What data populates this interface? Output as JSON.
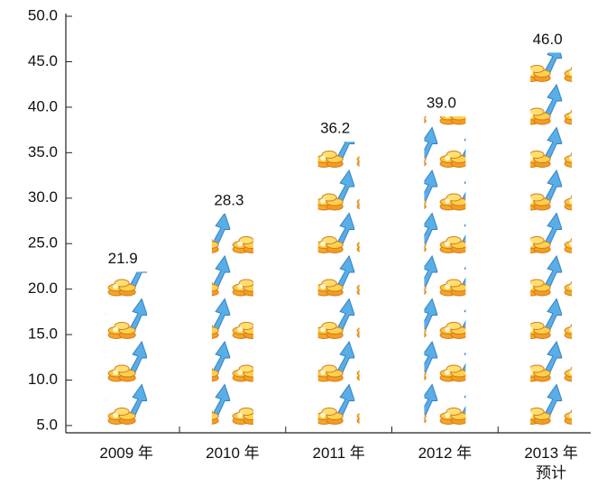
{
  "chart_data": {
    "type": "pictograph",
    "categories": [
      "2009 年",
      "2010 年",
      "2011 年",
      "2012 年",
      "2013 年\n预计"
    ],
    "values": [
      21.9,
      28.3,
      36.2,
      39.0,
      46.0
    ],
    "value_labels": [
      "21.9",
      "28.3",
      "36.2",
      "39.0",
      "46.0"
    ],
    "ylim": [
      4.2,
      50.3
    ],
    "yticks": [
      {
        "value": 5,
        "label": "5.0"
      },
      {
        "value": 10,
        "label": "10.0"
      },
      {
        "value": 15,
        "label": "15.0"
      },
      {
        "value": 20,
        "label": "20.0"
      },
      {
        "value": 25,
        "label": "25.0"
      },
      {
        "value": 30,
        "label": "30.0"
      },
      {
        "value": 35,
        "label": "35.0"
      },
      {
        "value": 40,
        "label": "40.0"
      },
      {
        "value": 45,
        "label": "45.0"
      },
      {
        "value": 50,
        "label": "50.0"
      }
    ]
  }
}
